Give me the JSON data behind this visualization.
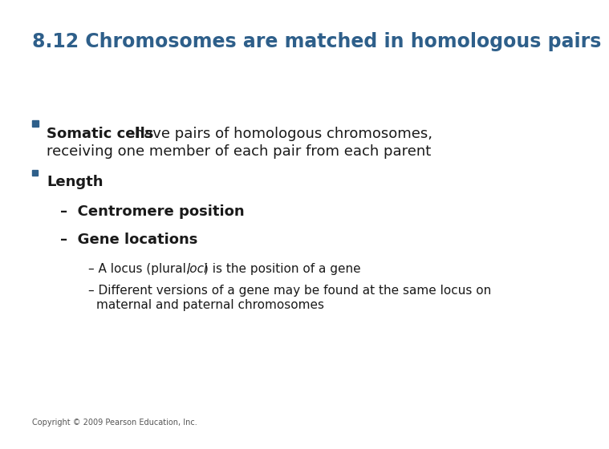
{
  "title": "8.12 Chromosomes are matched in homologous pairs",
  "title_color": "#2E5F8A",
  "title_fontsize": 17,
  "separator_color": "#A89F8C",
  "background_color": "#FFFFFF",
  "copyright": "Copyright © 2009 Pearson Education, Inc.",
  "bullet_square_color": "#2E5F8A",
  "text_color": "#1a1a1a",
  "body_fontsize": 13,
  "sub_fontsize": 13,
  "subsub_fontsize": 11
}
